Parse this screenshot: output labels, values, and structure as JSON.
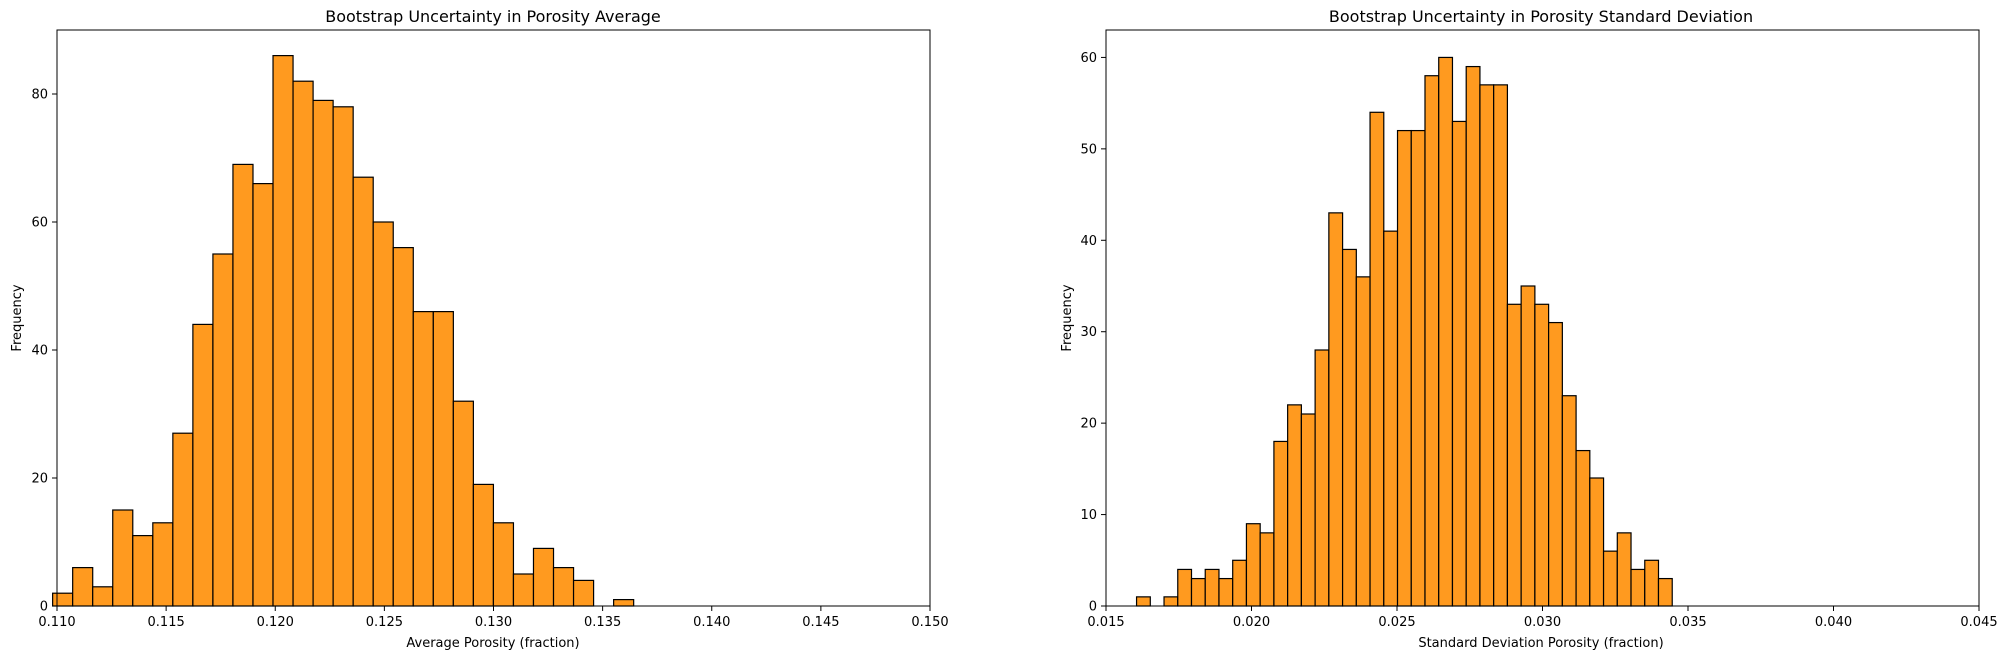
{
  "colors": {
    "bar_fill": "#FF9A1F",
    "bar_edge": "#000000",
    "background": "#FFFFFF"
  },
  "chart_data": [
    {
      "type": "bar",
      "subtype": "histogram",
      "title": "Bootstrap Uncertainty in Porosity Average",
      "xlabel": "Average Porosity (fraction)",
      "ylabel": "Frequency",
      "xlim": [
        0.11,
        0.15
      ],
      "ylim": [
        0,
        90
      ],
      "xticks": [
        "0.110",
        "0.115",
        "0.120",
        "0.125",
        "0.130",
        "0.135",
        "0.140",
        "0.145",
        "0.150"
      ],
      "yticks": [
        "0",
        "20",
        "40",
        "60",
        "80"
      ],
      "bin_start": 0.1098,
      "bin_width": 0.000918,
      "counts": [
        2,
        6,
        3,
        15,
        11,
        13,
        27,
        44,
        55,
        69,
        66,
        86,
        82,
        79,
        78,
        67,
        60,
        56,
        46,
        46,
        32,
        19,
        13,
        5,
        9,
        6,
        4,
        0,
        1
      ]
    },
    {
      "type": "bar",
      "subtype": "histogram",
      "title": "Bootstrap Uncertainty in Porosity Standard Deviation",
      "xlabel": "Standard Deviation Porosity (fraction)",
      "ylabel": "Frequency",
      "xlim": [
        0.015,
        0.045
      ],
      "ylim": [
        0,
        63
      ],
      "xticks": [
        "0.015",
        "0.020",
        "0.025",
        "0.030",
        "0.035",
        "0.040",
        "0.045"
      ],
      "yticks": [
        "0",
        "10",
        "20",
        "30",
        "40",
        "50",
        "60"
      ],
      "bin_start": 0.01605,
      "bin_width": 0.000472,
      "counts": [
        1,
        0,
        1,
        4,
        3,
        4,
        3,
        5,
        9,
        8,
        18,
        22,
        21,
        28,
        43,
        39,
        36,
        54,
        41,
        52,
        52,
        58,
        60,
        53,
        59,
        57,
        57,
        33,
        35,
        33,
        31,
        23,
        17,
        14,
        6,
        8,
        4,
        5,
        3
      ]
    }
  ]
}
